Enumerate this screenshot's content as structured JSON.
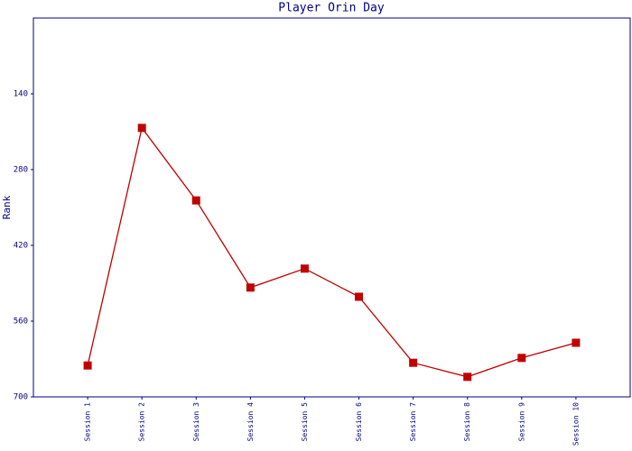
{
  "chart_data": {
    "type": "line",
    "title": "Player Orin Day",
    "y_label": "Rank",
    "categories": [
      "Session 1",
      "Session 2",
      "Session 3",
      "Session 4",
      "Session 5",
      "Session 6",
      "Session 7",
      "Session 8",
      "Session 9",
      "Session 10"
    ],
    "series": [
      {
        "name": "Rank",
        "color": "#c00000",
        "values": [
          642,
          203,
          337,
          498,
          463,
          515,
          637,
          663,
          628,
          600
        ]
      }
    ],
    "ylim": [
      700,
      0
    ],
    "yticks": [
      140,
      280,
      420,
      560,
      700
    ],
    "grid": false
  }
}
